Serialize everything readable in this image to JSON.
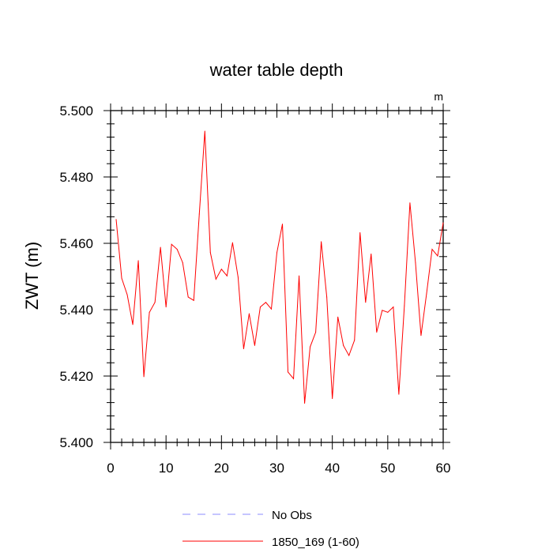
{
  "chart_data": {
    "type": "line",
    "title": "water table depth",
    "units_label": "m",
    "xlabel": "",
    "ylabel": "ZWT  (m)",
    "xlim": [
      0,
      60
    ],
    "ylim": [
      5.4,
      5.5
    ],
    "x_ticks": [
      0,
      10,
      20,
      30,
      40,
      50,
      60
    ],
    "x_tick_labels": [
      "0",
      "10",
      "20",
      "30",
      "40",
      "50",
      "60"
    ],
    "y_ticks": [
      5.4,
      5.42,
      5.44,
      5.46,
      5.48,
      5.5
    ],
    "y_tick_labels": [
      "5.400",
      "5.420",
      "5.440",
      "5.460",
      "5.480",
      "5.500"
    ],
    "grid": false,
    "legend_position": "bottom",
    "series": [
      {
        "name": "1850_169 (1-60)",
        "color": "#ff0000",
        "style": "solid",
        "x": [
          1,
          2,
          3,
          4,
          5,
          6,
          7,
          8,
          9,
          10,
          11,
          12,
          13,
          14,
          15,
          16,
          17,
          18,
          19,
          20,
          21,
          22,
          23,
          24,
          25,
          26,
          27,
          28,
          29,
          30,
          31,
          32,
          33,
          34,
          35,
          36,
          37,
          38,
          39,
          40,
          41,
          42,
          43,
          44,
          45,
          46,
          47,
          48,
          49,
          50,
          51,
          52,
          53,
          54,
          55,
          56,
          57,
          58,
          59,
          60
        ],
        "y": [
          5.4672,
          5.4495,
          5.4445,
          5.4355,
          5.4548,
          5.4198,
          5.4392,
          5.4422,
          5.4588,
          5.4408,
          5.4597,
          5.4582,
          5.4542,
          5.4438,
          5.4428,
          5.4688,
          5.4938,
          5.4572,
          5.4492,
          5.4522,
          5.4502,
          5.4602,
          5.4498,
          5.4282,
          5.4388,
          5.4292,
          5.4408,
          5.4422,
          5.4402,
          5.4572,
          5.4658,
          5.4212,
          5.4192,
          5.4502,
          5.4118,
          5.4288,
          5.4332,
          5.4605,
          5.4438,
          5.4132,
          5.4378,
          5.4292,
          5.4262,
          5.4308,
          5.4632,
          5.4422,
          5.4568,
          5.4332,
          5.4398,
          5.4392,
          5.4408,
          5.4145,
          5.4412,
          5.4722,
          5.4542,
          5.4322,
          5.4448,
          5.4582,
          5.4562,
          5.4662
        ]
      },
      {
        "name": "No Obs",
        "color": "#8c8cff",
        "style": "dashed",
        "x": [],
        "y": []
      }
    ],
    "legend_order": [
      "No Obs",
      "1850_169 (1-60)"
    ]
  }
}
